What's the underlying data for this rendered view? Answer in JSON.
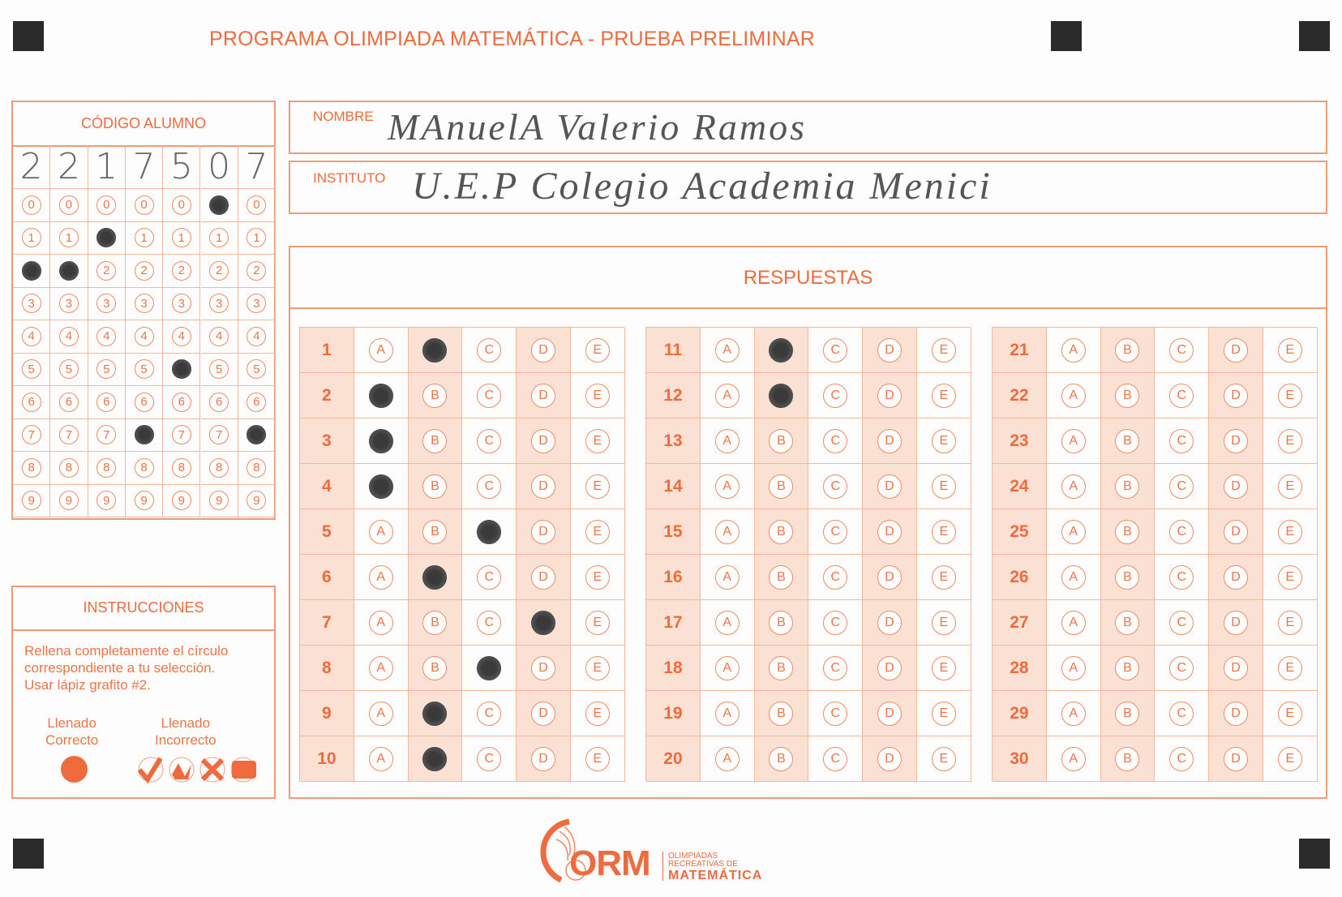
{
  "title": "PROGRAMA OLIMPIADA MATEMÁTICA  - PRUEBA PRELIMINAR",
  "colors": {
    "accent": "#ef6a3c",
    "shade": "#fbe1d3",
    "pencil": "#3a3a3a"
  },
  "student_code": {
    "header": "CÓDIGO ALUMNO",
    "handwritten_digits": [
      "2",
      "2",
      "1",
      "7",
      "5",
      "0",
      "7"
    ],
    "bubble_digits": [
      "0",
      "1",
      "2",
      "3",
      "4",
      "5",
      "6",
      "7",
      "8",
      "9"
    ],
    "filled": [
      2,
      2,
      1,
      7,
      5,
      0,
      7
    ]
  },
  "name": {
    "label": "NOMBRE",
    "value": "MAnuelA Valerio Ramos"
  },
  "institute": {
    "label": "INSTITUTO",
    "value": "U.E.P Colegio Academia Menici"
  },
  "answers": {
    "header": "RESPUESTAS",
    "options": [
      "A",
      "B",
      "C",
      "D",
      "E"
    ],
    "questions": [
      {
        "n": "1",
        "marked": "B"
      },
      {
        "n": "2",
        "marked": "A"
      },
      {
        "n": "3",
        "marked": "A"
      },
      {
        "n": "4",
        "marked": "A"
      },
      {
        "n": "5",
        "marked": "C"
      },
      {
        "n": "6",
        "marked": "B"
      },
      {
        "n": "7",
        "marked": "D"
      },
      {
        "n": "8",
        "marked": "C"
      },
      {
        "n": "9",
        "marked": "B"
      },
      {
        "n": "10",
        "marked": "B"
      },
      {
        "n": "11",
        "marked": "B"
      },
      {
        "n": "12",
        "marked": "B"
      },
      {
        "n": "13",
        "marked": ""
      },
      {
        "n": "14",
        "marked": ""
      },
      {
        "n": "15",
        "marked": ""
      },
      {
        "n": "16",
        "marked": ""
      },
      {
        "n": "17",
        "marked": ""
      },
      {
        "n": "18",
        "marked": ""
      },
      {
        "n": "19",
        "marked": ""
      },
      {
        "n": "20",
        "marked": ""
      },
      {
        "n": "21",
        "marked": ""
      },
      {
        "n": "22",
        "marked": ""
      },
      {
        "n": "23",
        "marked": ""
      },
      {
        "n": "24",
        "marked": ""
      },
      {
        "n": "25",
        "marked": ""
      },
      {
        "n": "26",
        "marked": ""
      },
      {
        "n": "27",
        "marked": ""
      },
      {
        "n": "28",
        "marked": ""
      },
      {
        "n": "29",
        "marked": ""
      },
      {
        "n": "30",
        "marked": ""
      }
    ]
  },
  "instructions": {
    "header": "INSTRUCCIONES",
    "text": [
      "Rellena completamente el círculo",
      "correspondiente a tu selección.",
      "Usar lápiz grafito #2."
    ],
    "correct_label": [
      "Llenado",
      "Correcto"
    ],
    "incorrect_label": [
      "Llenado",
      "Incorrecto"
    ]
  },
  "logo": {
    "acronym": "ORM",
    "line1": "OLIMPIADAS",
    "line2": "RECREATIVAS DE",
    "line3": "MATEMÁTICA"
  }
}
